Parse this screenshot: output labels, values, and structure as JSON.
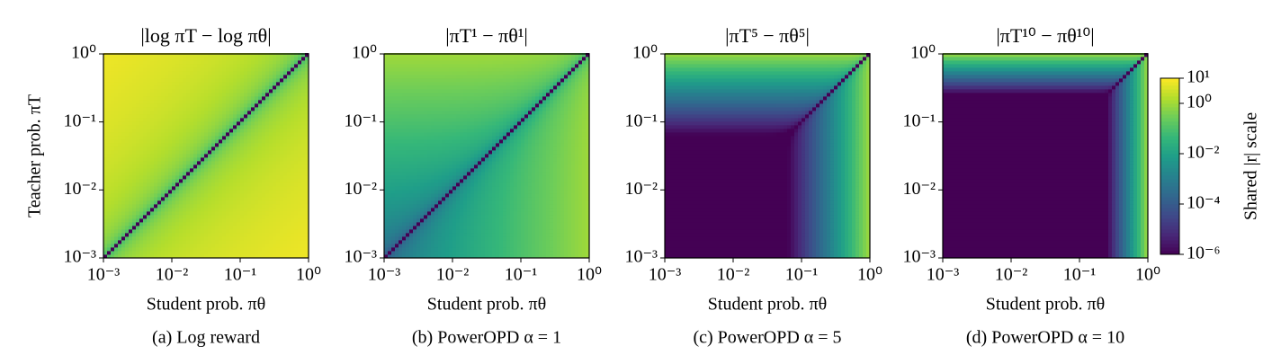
{
  "chart_data": [
    {
      "type": "heatmap",
      "reward": "log",
      "title": "|log πT − log πθ|",
      "xlabel": "Student prob. πθ",
      "ylabel": "Teacher prob. πT",
      "caption": "(a) Log reward",
      "log_scale": true,
      "xlim": [
        0.001,
        1
      ],
      "ylim": [
        0.001,
        1
      ],
      "xticks": [
        {
          "value": 0.001,
          "label": "10⁻³"
        },
        {
          "value": 0.01,
          "label": "10⁻²"
        },
        {
          "value": 0.1,
          "label": "10⁻¹"
        },
        {
          "value": 1,
          "label": "10⁰"
        }
      ],
      "yticks": [
        {
          "value": 0.001,
          "label": "10⁻³"
        },
        {
          "value": 0.01,
          "label": "10⁻²"
        },
        {
          "value": 0.1,
          "label": "10⁻¹"
        },
        {
          "value": 1,
          "label": "10⁰"
        }
      ]
    },
    {
      "type": "heatmap",
      "reward": "power",
      "alpha": 1,
      "title": "|πT¹ − πθ¹|",
      "xlabel": "Student prob. πθ",
      "caption": "(b) PowerOPD α = 1",
      "log_scale": true,
      "xlim": [
        0.001,
        1
      ],
      "ylim": [
        0.001,
        1
      ],
      "xticks": [
        {
          "value": 0.001,
          "label": "10⁻³"
        },
        {
          "value": 0.01,
          "label": "10⁻²"
        },
        {
          "value": 0.1,
          "label": "10⁻¹"
        },
        {
          "value": 1,
          "label": "10⁰"
        }
      ],
      "yticks": [
        {
          "value": 0.001,
          "label": "10⁻³"
        },
        {
          "value": 0.01,
          "label": "10⁻²"
        },
        {
          "value": 0.1,
          "label": "10⁻¹"
        },
        {
          "value": 1,
          "label": "10⁰"
        }
      ]
    },
    {
      "type": "heatmap",
      "reward": "power",
      "alpha": 5,
      "title": "|πT⁵ − πθ⁵|",
      "xlabel": "Student prob. πθ",
      "caption": "(c) PowerOPD α = 5",
      "log_scale": true,
      "xlim": [
        0.001,
        1
      ],
      "ylim": [
        0.001,
        1
      ],
      "xticks": [
        {
          "value": 0.001,
          "label": "10⁻³"
        },
        {
          "value": 0.01,
          "label": "10⁻²"
        },
        {
          "value": 0.1,
          "label": "10⁻¹"
        },
        {
          "value": 1,
          "label": "10⁰"
        }
      ],
      "yticks": [
        {
          "value": 0.001,
          "label": "10⁻³"
        },
        {
          "value": 0.01,
          "label": "10⁻²"
        },
        {
          "value": 0.1,
          "label": "10⁻¹"
        },
        {
          "value": 1,
          "label": "10⁰"
        }
      ]
    },
    {
      "type": "heatmap",
      "reward": "power",
      "alpha": 10,
      "title": "|πT¹⁰ − πθ¹⁰|",
      "xlabel": "Student prob. πθ",
      "caption": "(d) PowerOPD α = 10",
      "log_scale": true,
      "xlim": [
        0.001,
        1
      ],
      "ylim": [
        0.001,
        1
      ],
      "xticks": [
        {
          "value": 0.001,
          "label": "10⁻³"
        },
        {
          "value": 0.01,
          "label": "10⁻²"
        },
        {
          "value": 0.1,
          "label": "10⁻¹"
        },
        {
          "value": 1,
          "label": "10⁰"
        }
      ],
      "yticks": [
        {
          "value": 0.001,
          "label": "10⁻³"
        },
        {
          "value": 0.01,
          "label": "10⁻²"
        },
        {
          "value": 0.1,
          "label": "10⁻¹"
        },
        {
          "value": 1,
          "label": "10⁰"
        }
      ]
    }
  ],
  "colorbar": {
    "label": "Shared |r| scale",
    "colormap": "viridis",
    "log_scale": true,
    "lim": [
      1e-06,
      10
    ],
    "ticks": [
      {
        "value": 10,
        "label": "10¹"
      },
      {
        "value": 1,
        "label": "10⁰"
      },
      {
        "value": 0.01,
        "label": "10⁻²"
      },
      {
        "value": 0.0001,
        "label": "10⁻⁴"
      },
      {
        "value": 1e-06,
        "label": "10⁻⁶"
      }
    ]
  }
}
